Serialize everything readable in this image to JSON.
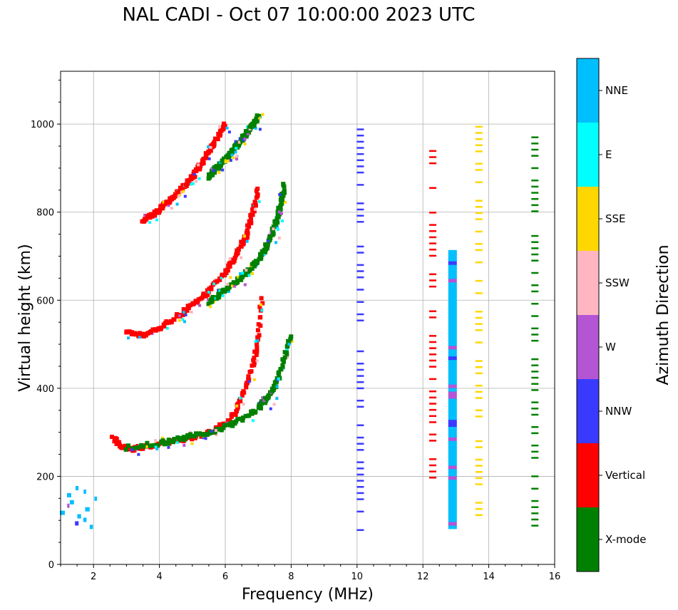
{
  "chart_data": {
    "type": "scatter",
    "title": "NAL CADI - Oct 07 10:00:00 2023 UTC",
    "xlabel": "Frequency (MHz)",
    "ylabel": "Virtual height (km)",
    "xlim": [
      1,
      16
    ],
    "ylim": [
      0,
      1120
    ],
    "xticks": [
      2,
      4,
      6,
      8,
      10,
      12,
      14,
      16
    ],
    "yticks": [
      0,
      200,
      400,
      600,
      800,
      1000
    ],
    "grid": true,
    "colorbar": {
      "label": "Azimuth Direction",
      "categories": [
        {
          "name": "X-mode",
          "color": "#008000"
        },
        {
          "name": "Vertical",
          "color": "#ff0000"
        },
        {
          "name": "NNW",
          "color": "#3a3aff"
        },
        {
          "name": "W",
          "color": "#b455d4"
        },
        {
          "name": "SSW",
          "color": "#ffb6c1"
        },
        {
          "name": "SSE",
          "color": "#ffd700"
        },
        {
          "name": "E",
          "color": "#00ffff"
        },
        {
          "name": "NNE",
          "color": "#00bfff"
        }
      ]
    },
    "series": [
      {
        "name": "F-layer trace (1st hop, O-mode)",
        "category": "Vertical",
        "x_mhz": [
          2.6,
          2.8,
          3.0,
          3.2,
          3.5,
          4.0,
          4.5,
          5.0,
          5.5,
          6.0,
          6.3,
          6.5,
          6.7,
          6.9,
          7.0,
          7.1
        ],
        "height_km": [
          285,
          272,
          265,
          262,
          268,
          272,
          280,
          288,
          300,
          320,
          345,
          380,
          420,
          470,
          520,
          600
        ]
      },
      {
        "name": "F-layer trace (1st hop, X-mode)",
        "category": "X-mode",
        "x_mhz": [
          3.0,
          4.0,
          4.5,
          5.0,
          5.5,
          6.0,
          6.5,
          7.0,
          7.2,
          7.4,
          7.6,
          7.8,
          8.0
        ],
        "height_km": [
          265,
          275,
          283,
          292,
          300,
          312,
          330,
          355,
          372,
          390,
          420,
          470,
          520
        ]
      },
      {
        "name": "F-layer trace (2nd hop, O-mode)",
        "category": "Vertical",
        "x_mhz": [
          3.0,
          3.5,
          4.0,
          4.5,
          5.0,
          5.5,
          6.0,
          6.3,
          6.6,
          6.8,
          7.0
        ],
        "height_km": [
          528,
          520,
          535,
          560,
          590,
          620,
          660,
          700,
          740,
          790,
          850
        ]
      },
      {
        "name": "F-layer trace (2nd hop, X-mode)",
        "category": "X-mode",
        "x_mhz": [
          5.5,
          6.0,
          6.5,
          7.0,
          7.3,
          7.6,
          7.8
        ],
        "height_km": [
          595,
          625,
          650,
          690,
          730,
          790,
          860
        ]
      },
      {
        "name": "F-layer trace (3rd hop, O-mode)",
        "category": "Vertical",
        "x_mhz": [
          3.5,
          4.0,
          4.5,
          5.0,
          5.5,
          6.0
        ],
        "height_km": [
          778,
          805,
          840,
          880,
          935,
          1000
        ]
      },
      {
        "name": "F-layer trace (3rd hop, X-mode)",
        "category": "X-mode",
        "x_mhz": [
          5.5,
          6.0,
          6.5,
          7.0
        ],
        "height_km": [
          880,
          920,
          965,
          1015
        ]
      },
      {
        "name": "Interference band 10.1 MHz",
        "category": "NNW",
        "x_mhz": [
          10.1
        ],
        "height_km_range": [
          80,
          1010
        ]
      },
      {
        "name": "Interference band 12.3 MHz",
        "category": "Vertical",
        "x_mhz": [
          12.3
        ],
        "height_km_range": [
          185,
          985
        ]
      },
      {
        "name": "Interference band 12.9 MHz",
        "category": "NNE",
        "x_mhz": [
          12.9
        ],
        "height_km_range": [
          90,
          715
        ]
      },
      {
        "name": "Interference band 13.7 MHz",
        "category": "SSE",
        "x_mhz": [
          13.7
        ],
        "height_km_range": [
          100,
          1015
        ]
      },
      {
        "name": "Interference band 15.4 MHz",
        "category": "X-mode",
        "x_mhz": [
          15.4
        ],
        "height_km_range": [
          90,
          1000
        ]
      },
      {
        "name": "Low-frequency echoes",
        "category": "NNE",
        "x_mhz": [
          1.5,
          2.0,
          2.5
        ],
        "height_km_range": [
          90,
          180
        ]
      }
    ]
  }
}
